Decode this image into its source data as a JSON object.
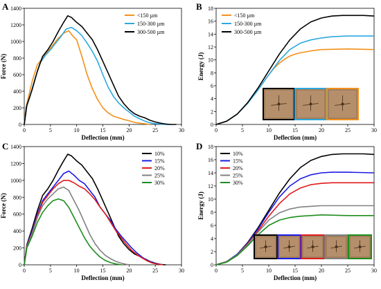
{
  "chart_data": [
    {
      "panel": "A",
      "type": "line",
      "xlabel": "Deflection (mm)",
      "ylabel": "Force (N)",
      "xlim": [
        0,
        30
      ],
      "ylim": [
        0,
        1400
      ],
      "xticks": [
        0,
        5,
        10,
        15,
        20,
        25,
        30
      ],
      "yticks": [
        0,
        200,
        400,
        600,
        800,
        1000,
        1200,
        1400
      ],
      "legend": "top-right",
      "series": [
        {
          "name": "<150 µm",
          "color": "#f39019",
          "x": [
            0,
            0.3,
            0.8,
            1.5,
            2.5,
            3.5,
            4.5,
            5.5,
            6.5,
            7.5,
            8.5,
            9.2,
            10,
            11,
            12,
            13,
            14,
            15,
            16,
            17,
            18,
            19,
            20,
            21,
            22,
            23,
            24
          ],
          "y": [
            0,
            200,
            330,
            520,
            720,
            800,
            880,
            960,
            1040,
            1100,
            1130,
            1070,
            1020,
            820,
            600,
            430,
            300,
            200,
            140,
            100,
            80,
            60,
            45,
            25,
            15,
            8,
            0
          ]
        },
        {
          "name": "150-300 µm",
          "color": "#2aa8e0",
          "x": [
            0,
            0.4,
            1,
            2,
            3,
            4,
            5,
            6,
            7,
            8,
            9,
            10,
            11,
            12,
            13,
            14,
            15,
            16,
            17,
            18,
            19,
            20,
            21,
            22,
            23,
            24,
            25,
            26,
            27,
            28
          ],
          "y": [
            0,
            210,
            320,
            540,
            740,
            830,
            900,
            980,
            1060,
            1150,
            1170,
            1130,
            1070,
            980,
            880,
            760,
            600,
            450,
            340,
            260,
            200,
            150,
            100,
            70,
            40,
            20,
            10,
            5,
            0,
            0
          ]
        },
        {
          "name": "300-500 µm",
          "color": "#000000",
          "x": [
            0,
            0.5,
            1.5,
            2.5,
            3.5,
            4.5,
            5.5,
            6.5,
            7.5,
            8.3,
            9,
            10,
            11,
            12,
            13,
            14,
            15,
            16,
            17,
            18,
            19,
            20,
            21,
            22,
            23,
            24,
            25,
            26,
            27,
            28,
            29
          ],
          "y": [
            0,
            230,
            420,
            640,
            820,
            900,
            1000,
            1120,
            1230,
            1310,
            1290,
            1230,
            1180,
            1100,
            1020,
            900,
            760,
            620,
            480,
            340,
            250,
            180,
            130,
            100,
            80,
            50,
            30,
            15,
            5,
            0,
            0
          ]
        }
      ]
    },
    {
      "panel": "B",
      "type": "line",
      "xlabel": "Deflection (mm)",
      "ylabel": "Energy (J)",
      "xlim": [
        0,
        30
      ],
      "ylim": [
        0,
        18
      ],
      "xticks": [
        0,
        5,
        10,
        15,
        20,
        25,
        30
      ],
      "yticks": [
        0,
        2,
        4,
        6,
        8,
        10,
        12,
        14,
        16,
        18
      ],
      "legend": "top-left",
      "series": [
        {
          "name": "<150 µm",
          "color": "#f39019",
          "x": [
            0,
            2,
            4,
            6,
            8,
            10,
            11,
            12,
            13,
            14,
            15,
            16,
            18,
            20,
            25,
            30
          ],
          "y": [
            0,
            0.5,
            1.6,
            3.3,
            5.4,
            7.7,
            8.7,
            9.5,
            10.1,
            10.6,
            10.9,
            11.1,
            11.4,
            11.6,
            11.7,
            11.6
          ]
        },
        {
          "name": "150-300 µm",
          "color": "#2aa8e0",
          "x": [
            0,
            2,
            4,
            6,
            8,
            10,
            12,
            14,
            16,
            18,
            20,
            22,
            25,
            30
          ],
          "y": [
            0,
            0.5,
            1.6,
            3.3,
            5.4,
            7.7,
            9.9,
            11.6,
            12.6,
            13.1,
            13.4,
            13.6,
            13.7,
            13.7
          ]
        },
        {
          "name": "300-500 µm",
          "color": "#000000",
          "x": [
            0,
            2,
            4,
            6,
            8,
            10,
            12,
            14,
            16,
            18,
            20,
            22,
            24,
            26,
            28,
            30
          ],
          "y": [
            0,
            0.5,
            1.6,
            3.4,
            5.7,
            8.3,
            10.9,
            13.1,
            14.8,
            15.9,
            16.5,
            16.8,
            16.9,
            16.9,
            16.9,
            16.8
          ]
        }
      ]
    },
    {
      "panel": "C",
      "type": "line",
      "xlabel": "Deflection (mm)",
      "ylabel": "Force (N)",
      "xlim": [
        0,
        30
      ],
      "ylim": [
        0,
        1400
      ],
      "xticks": [
        0,
        5,
        10,
        15,
        20,
        25,
        30
      ],
      "yticks": [
        0,
        200,
        400,
        600,
        800,
        1000,
        1200,
        1400
      ],
      "legend": "top-right",
      "series": [
        {
          "name": "10%",
          "color": "#000000",
          "x": [
            0,
            0.5,
            1.5,
            2.5,
            3.5,
            4.5,
            5.5,
            6.5,
            7.5,
            8.3,
            9,
            10,
            11,
            12,
            13,
            14,
            15,
            16,
            17,
            18,
            19,
            20,
            21,
            22,
            23,
            24,
            25,
            26,
            27
          ],
          "y": [
            0,
            240,
            430,
            640,
            820,
            900,
            1000,
            1120,
            1230,
            1310,
            1290,
            1230,
            1180,
            1100,
            1020,
            900,
            760,
            620,
            480,
            340,
            250,
            180,
            130,
            100,
            70,
            40,
            20,
            5,
            0
          ]
        },
        {
          "name": "15%",
          "color": "#1a1ae6",
          "x": [
            0,
            0.5,
            1.5,
            2.5,
            3.5,
            4.5,
            5.5,
            6.5,
            7.5,
            8.5,
            9.5,
            10.5,
            11.5,
            12.5,
            13.5,
            14.5,
            15.5,
            16.5,
            17.5,
            18.5,
            19.5,
            20.5,
            21.5,
            22.5,
            23.5,
            24.5,
            25.5,
            26.5
          ],
          "y": [
            0,
            230,
            400,
            600,
            760,
            840,
            920,
            1000,
            1080,
            1110,
            1060,
            1000,
            960,
            880,
            800,
            680,
            600,
            520,
            420,
            340,
            270,
            200,
            140,
            90,
            50,
            25,
            10,
            0
          ]
        },
        {
          "name": "20%",
          "color": "#e01919",
          "x": [
            0,
            0.5,
            1.5,
            2.5,
            3.5,
            4.5,
            5.5,
            6.5,
            7.5,
            8.5,
            9.5,
            10.5,
            11.5,
            12.5,
            13.5,
            14.5,
            15.5,
            16.5,
            17.5,
            18.5,
            19.5,
            20.5,
            21.5,
            22.5,
            23.5,
            24.5,
            25.5,
            26.5
          ],
          "y": [
            0,
            220,
            380,
            580,
            740,
            820,
            900,
            960,
            1000,
            1000,
            970,
            930,
            900,
            840,
            770,
            680,
            600,
            500,
            400,
            320,
            240,
            170,
            120,
            80,
            45,
            20,
            8,
            0
          ]
        },
        {
          "name": "25%",
          "color": "#808080",
          "x": [
            0,
            0.5,
            1.5,
            2.5,
            3.5,
            4.5,
            5.5,
            6.5,
            7.5,
            8.5,
            9.5,
            10.5,
            11.5,
            12.5,
            13.5,
            14.5,
            15.5,
            16.5,
            17.5,
            18.5,
            19.5,
            20.5
          ],
          "y": [
            0,
            210,
            370,
            560,
            700,
            780,
            840,
            900,
            920,
            880,
            760,
            640,
            500,
            360,
            250,
            170,
            110,
            70,
            40,
            20,
            5,
            0
          ]
        },
        {
          "name": "30%",
          "color": "#1c8c1c",
          "x": [
            0,
            0.5,
            1.5,
            2.5,
            3.5,
            4.5,
            5.5,
            6.5,
            7.5,
            8.5,
            9.5,
            10.5,
            11.5,
            12.5,
            13.5,
            14.5,
            15.5,
            16.5,
            17.5,
            18.5
          ],
          "y": [
            0,
            200,
            340,
            500,
            620,
            700,
            760,
            780,
            760,
            680,
            560,
            440,
            320,
            220,
            150,
            90,
            50,
            25,
            10,
            0
          ]
        }
      ]
    },
    {
      "panel": "D",
      "type": "line",
      "xlabel": "Deflection (mm)",
      "ylabel": "Energy (J)",
      "xlim": [
        0,
        30
      ],
      "ylim": [
        0,
        18
      ],
      "xticks": [
        0,
        5,
        10,
        15,
        20,
        25,
        30
      ],
      "yticks": [
        0,
        2,
        4,
        6,
        8,
        10,
        12,
        14,
        16,
        18
      ],
      "legend": "top-left",
      "series": [
        {
          "name": "10%",
          "color": "#000000",
          "x": [
            0,
            2,
            4,
            6,
            8,
            10,
            12,
            14,
            16,
            18,
            20,
            22,
            24,
            26,
            28,
            30
          ],
          "y": [
            0,
            0.5,
            1.6,
            3.4,
            5.7,
            8.3,
            10.9,
            13.1,
            14.8,
            15.9,
            16.5,
            16.8,
            16.9,
            16.9,
            16.9,
            16.8
          ]
        },
        {
          "name": "15%",
          "color": "#1a1ae6",
          "x": [
            0,
            2,
            4,
            6,
            8,
            10,
            12,
            14,
            16,
            18,
            20,
            22,
            25,
            30
          ],
          "y": [
            0,
            0.5,
            1.6,
            3.3,
            5.5,
            8.0,
            10.3,
            12.0,
            13.1,
            13.7,
            14.0,
            14.1,
            14.1,
            14.0
          ]
        },
        {
          "name": "20%",
          "color": "#e01919",
          "x": [
            0,
            2,
            4,
            6,
            8,
            10,
            12,
            14,
            16,
            18,
            20,
            22,
            25,
            30
          ],
          "y": [
            0,
            0.5,
            1.5,
            3.2,
            5.2,
            7.4,
            9.3,
            10.8,
            11.7,
            12.2,
            12.4,
            12.5,
            12.5,
            12.5
          ]
        },
        {
          "name": "25%",
          "color": "#808080",
          "x": [
            0,
            2,
            4,
            6,
            8,
            10,
            12,
            14,
            16,
            18,
            20,
            25,
            30
          ],
          "y": [
            0,
            0.5,
            1.5,
            3.1,
            5.0,
            6.8,
            7.9,
            8.5,
            8.8,
            8.9,
            9.0,
            9.0,
            9.0
          ]
        },
        {
          "name": "30%",
          "color": "#1c8c1c",
          "x": [
            0,
            2,
            4,
            6,
            8,
            10,
            12,
            14,
            16,
            18,
            20,
            25,
            30
          ],
          "y": [
            0,
            0.4,
            1.4,
            2.9,
            4.6,
            6.0,
            6.8,
            7.2,
            7.4,
            7.5,
            7.6,
            7.5,
            7.5
          ]
        }
      ]
    }
  ],
  "panels": [
    {
      "letter": "A",
      "image_frames": []
    },
    {
      "letter": "B",
      "image_frames": [
        "#000000",
        "#2aa8e0",
        "#f39019"
      ]
    },
    {
      "letter": "C",
      "image_frames": []
    },
    {
      "letter": "D",
      "image_frames": [
        "#000000",
        "#1a1ae6",
        "#e01919",
        "#808080",
        "#1c8c1c"
      ]
    }
  ]
}
